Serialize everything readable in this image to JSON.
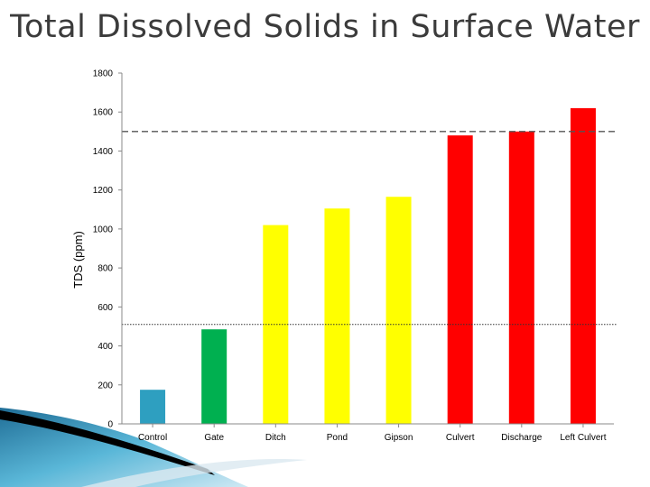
{
  "title": "Total Dissolved Solids in Surface Water",
  "chart_data": {
    "type": "bar",
    "title": "Total Dissolved Solids in Surface Water",
    "xlabel": "",
    "ylabel": "TDS (ppm)",
    "ylim": [
      0,
      1800
    ],
    "yticks": [
      0,
      200,
      400,
      600,
      800,
      1000,
      1200,
      1400,
      1600,
      1800
    ],
    "categories": [
      "Control",
      "Gate",
      "Ditch",
      "Pond",
      "Gipson",
      "Culvert",
      "Discharge",
      "Left Culvert"
    ],
    "values": [
      175,
      485,
      1020,
      1105,
      1165,
      1480,
      1500,
      1620
    ],
    "bar_colors": [
      "#2e9fc0",
      "#00b050",
      "#ffff00",
      "#ffff00",
      "#ffff00",
      "#ff0000",
      "#ff0000",
      "#ff0000"
    ],
    "reference_lines": [
      {
        "value": 1500,
        "style": "dashed",
        "color": "#555555"
      },
      {
        "value": 510,
        "style": "dotted",
        "color": "#333333"
      }
    ],
    "grid": false
  }
}
